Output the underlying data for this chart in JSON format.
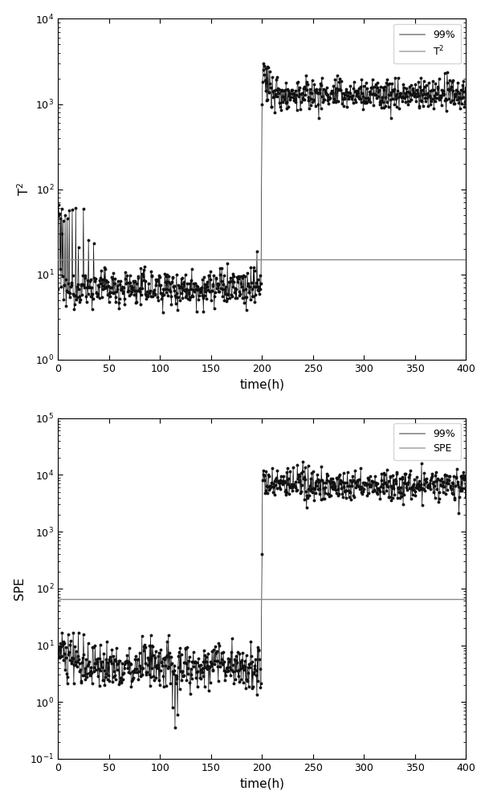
{
  "top_plot": {
    "ylabel": "T$^2$",
    "xlabel": "time(h)",
    "xlim": [
      0,
      400
    ],
    "ylim_log": [
      1.0,
      10000
    ],
    "threshold_99": 15.0,
    "legend_99": "99%",
    "legend_data": "T$^2$"
  },
  "bottom_plot": {
    "ylabel": "SPE",
    "xlabel": "time(h)",
    "xlim": [
      0,
      400
    ],
    "ylim_log": [
      0.1,
      100000
    ],
    "threshold_99": 65.0,
    "legend_99": "99%",
    "legend_data": "SPE"
  },
  "line_color_99": "#888888",
  "line_color_data": "#aaaaaa",
  "data_color": "#111111",
  "marker_color": "#111111",
  "background_color": "#ffffff",
  "figsize": [
    6.09,
    10.0
  ],
  "dpi": 100
}
